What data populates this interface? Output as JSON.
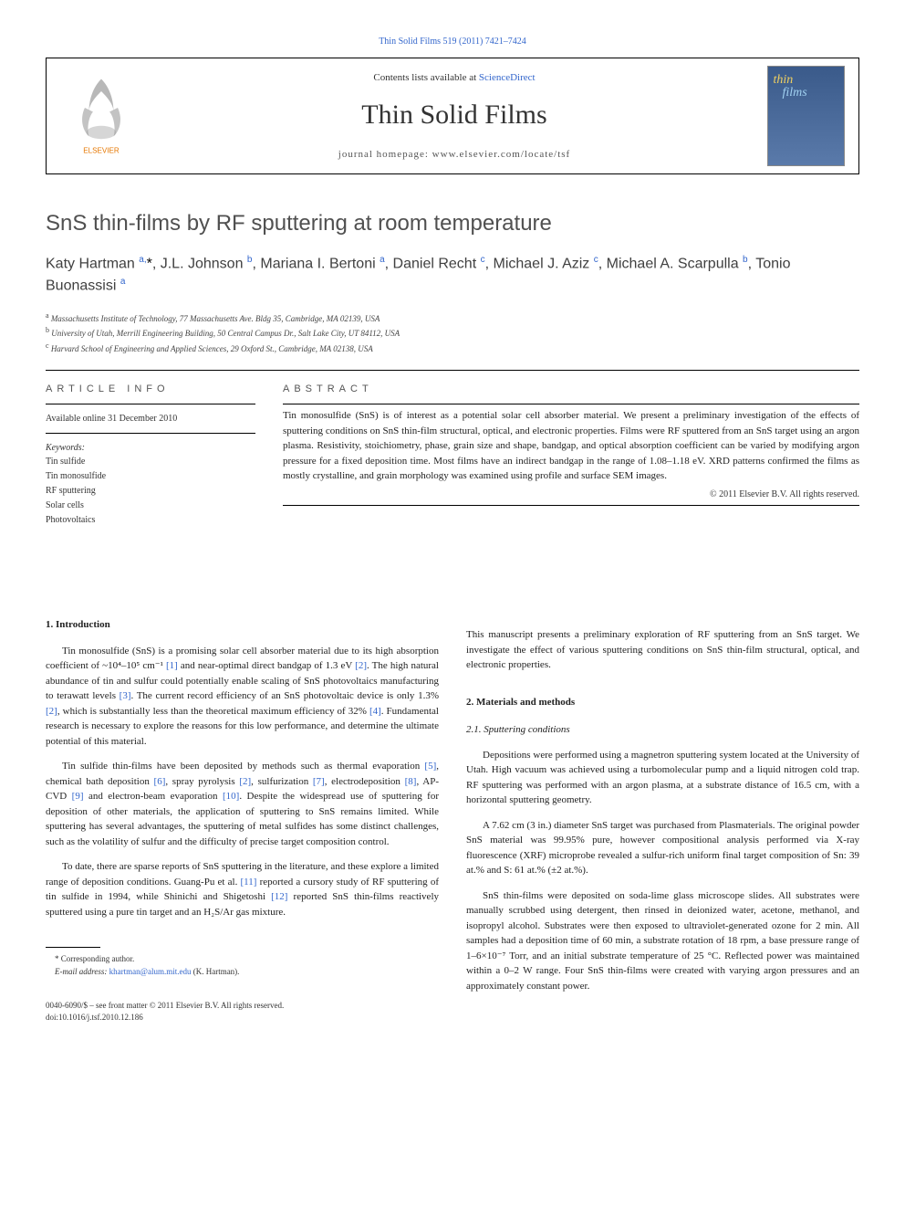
{
  "top_link": "Thin Solid Films 519 (2011) 7421–7424",
  "header": {
    "contents_prefix": "Contents lists available at ",
    "contents_link": "ScienceDirect",
    "journal_name": "Thin Solid Films",
    "homepage_label": "journal homepage: www.elsevier.com/locate/tsf",
    "cover_line1": "thin",
    "cover_line2": "films",
    "elsevier_label": "ELSEVIER"
  },
  "title": "SnS thin-films by RF sputtering at room temperature",
  "authors_html": "Katy Hartman <sup>a,</sup><span class='star'>*</span>, J.L. Johnson <sup>b</sup>, Mariana I. Bertoni <sup>a</sup>, Daniel Recht <sup>c</sup>, Michael J. Aziz <sup>c</sup>, Michael A. Scarpulla <sup>b</sup>, Tonio Buonassisi <sup>a</sup>",
  "affiliations": [
    "a Massachusetts Institute of Technology, 77 Massachusetts Ave. Bldg 35, Cambridge, MA 02139, USA",
    "b University of Utah, Merrill Engineering Building, 50 Central Campus Dr., Salt Lake City, UT 84112, USA",
    "c Harvard School of Engineering and Applied Sciences, 29 Oxford St., Cambridge, MA 02138, USA"
  ],
  "article_info": {
    "label": "ARTICLE INFO",
    "available": "Available online 31 December 2010",
    "keywords_label": "Keywords:",
    "keywords": [
      "Tin sulfide",
      "Tin monosulfide",
      "RF sputtering",
      "Solar cells",
      "Photovoltaics"
    ]
  },
  "abstract": {
    "label": "ABSTRACT",
    "text": "Tin monosulfide (SnS) is of interest as a potential solar cell absorber material. We present a preliminary investigation of the effects of sputtering conditions on SnS thin-film structural, optical, and electronic properties. Films were RF sputtered from an SnS target using an argon plasma. Resistivity, stoichiometry, phase, grain size and shape, bandgap, and optical absorption coefficient can be varied by modifying argon pressure for a fixed deposition time. Most films have an indirect bandgap in the range of 1.08–1.18 eV. XRD patterns confirmed the films as mostly crystalline, and grain morphology was examined using profile and surface SEM images.",
    "copyright": "© 2011 Elsevier B.V. All rights reserved."
  },
  "body": {
    "left": {
      "heading": "1. Introduction",
      "p1": "Tin monosulfide (SnS) is a promising solar cell absorber material due to its high absorption coefficient of ~10⁴–10⁵ cm⁻¹ [1] and near-optimal direct bandgap of 1.3 eV [2]. The high natural abundance of tin and sulfur could potentially enable scaling of SnS photovoltaics manufacturing to terawatt levels [3]. The current record efficiency of an SnS photovoltaic device is only 1.3% [2], which is substantially less than the theoretical maximum efficiency of 32% [4]. Fundamental research is necessary to explore the reasons for this low performance, and determine the ultimate potential of this material.",
      "p2": "Tin sulfide thin-films have been deposited by methods such as thermal evaporation [5], chemical bath deposition [6], spray pyrolysis [2], sulfurization [7], electrodeposition [8], AP-CVD [9] and electron-beam evaporation [10]. Despite the widespread use of sputtering for deposition of other materials, the application of sputtering to SnS remains limited. While sputtering has several advantages, the sputtering of metal sulfides has some distinct challenges, such as the volatility of sulfur and the difficulty of precise target composition control.",
      "p3": "To date, there are sparse reports of SnS sputtering in the literature, and these explore a limited range of deposition conditions. Guang-Pu et al. [11] reported a cursory study of RF sputtering of tin sulfide in 1994, while Shinichi and Shigetoshi [12] reported SnS thin-films reactively sputtered using a pure tin target and an H₂S/Ar gas mixture."
    },
    "right": {
      "intro_cont": "This manuscript presents a preliminary exploration of RF sputtering from an SnS target. We investigate the effect of various sputtering conditions on SnS thin-film structural, optical, and electronic properties.",
      "heading2": "2. Materials and methods",
      "subheading21": "2.1. Sputtering conditions",
      "p1": "Depositions were performed using a magnetron sputtering system located at the University of Utah. High vacuum was achieved using a turbomolecular pump and a liquid nitrogen cold trap. RF sputtering was performed with an argon plasma, at a substrate distance of 16.5 cm, with a horizontal sputtering geometry.",
      "p2": "A 7.62 cm (3 in.) diameter SnS target was purchased from Plasmaterials. The original powder SnS material was 99.95% pure, however compositional analysis performed via X-ray fluorescence (XRF) microprobe revealed a sulfur-rich uniform final target composition of Sn: 39 at.% and S: 61 at.% (±2 at.%).",
      "p3": "SnS thin-films were deposited on soda-lime glass microscope slides. All substrates were manually scrubbed using detergent, then rinsed in deionized water, acetone, methanol, and isopropyl alcohol. Substrates were then exposed to ultraviolet-generated ozone for 2 min. All samples had a deposition time of 60 min, a substrate rotation of 18 rpm, a base pressure range of 1–6×10⁻⁷ Torr, and an initial substrate temperature of 25 °C. Reflected power was maintained within a 0–2 W range. Four SnS thin-films were created with varying argon pressures and an approximately constant power."
    }
  },
  "footnote": {
    "corr": "* Corresponding author.",
    "email_label": "E-mail address: ",
    "email": "khartman@alum.mit.edu",
    "email_suffix": " (K. Hartman)."
  },
  "bottom": {
    "line1": "0040-6090/$ – see front matter © 2011 Elsevier B.V. All rights reserved.",
    "line2": "doi:10.1016/j.tsf.2010.12.186"
  },
  "refs": [
    "[1]",
    "[2]",
    "[3]",
    "[4]",
    "[5]",
    "[6]",
    "[7]",
    "[8]",
    "[9]",
    "[10]",
    "[11]",
    "[12]"
  ]
}
